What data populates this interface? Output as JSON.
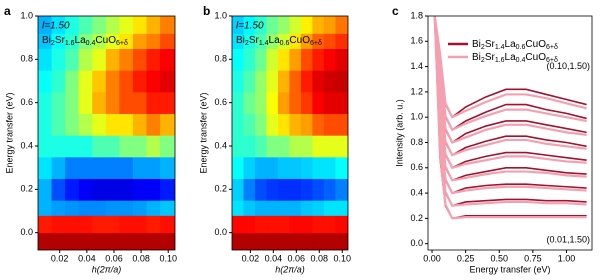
{
  "chart_data": [
    {
      "type": "heatmap",
      "panel_label": "a",
      "annotation": "l=1.50",
      "sample": "Bi2Sr1.6La0.4CuO6+δ",
      "xlabel": "h(2π/a)",
      "ylabel": "Energy transfer (eV)",
      "xlim": [
        0.004,
        0.105
      ],
      "ylim": [
        -0.08,
        1.0
      ],
      "xticks": [
        0.02,
        0.04,
        0.06,
        0.08,
        {
          "value": 0.1,
          "label": "0.10"
        }
      ],
      "yticks": [
        {
          "value": 0,
          "label": "0.0"
        },
        0.2,
        0.4,
        0.6,
        0.8,
        {
          "value": 1,
          "label": "1.0"
        }
      ],
      "xbins": [
        0.004,
        0.014,
        0.024,
        0.034,
        0.044,
        0.054,
        0.064,
        0.074,
        0.084,
        0.094,
        0.105
      ],
      "ybins": [
        -0.08,
        0,
        0.08,
        0.15,
        0.25,
        0.35,
        0.45,
        0.55,
        0.65,
        0.75,
        0.85,
        0.92,
        1.0
      ],
      "z": [
        [
          0.95,
          0.95,
          0.95,
          0.95,
          0.95,
          0.95,
          0.95,
          0.95,
          0.95,
          0.95
        ],
        [
          0.85,
          0.86,
          0.86,
          0.86,
          0.85,
          0.85,
          0.86,
          0.86,
          0.85,
          0.86
        ],
        [
          0.3,
          0.28,
          0.27,
          0.26,
          0.26,
          0.27,
          0.27,
          0.28,
          0.3,
          0.32
        ],
        [
          0.3,
          0.2,
          0.15,
          0.12,
          0.1,
          0.1,
          0.1,
          0.12,
          0.12,
          0.15
        ],
        [
          0.35,
          0.3,
          0.25,
          0.25,
          0.25,
          0.25,
          0.25,
          0.28,
          0.28,
          0.3
        ],
        [
          0.4,
          0.4,
          0.4,
          0.4,
          0.45,
          0.45,
          0.5,
          0.5,
          0.55,
          0.5
        ],
        [
          0.4,
          0.45,
          0.5,
          0.55,
          0.6,
          0.65,
          0.65,
          0.7,
          0.75,
          0.7
        ],
        [
          0.4,
          0.45,
          0.5,
          0.6,
          0.7,
          0.75,
          0.8,
          0.8,
          0.85,
          0.85
        ],
        [
          0.38,
          0.42,
          0.5,
          0.6,
          0.68,
          0.75,
          0.8,
          0.85,
          0.88,
          0.9
        ],
        [
          0.35,
          0.4,
          0.45,
          0.55,
          0.6,
          0.7,
          0.75,
          0.8,
          0.85,
          0.88
        ],
        [
          0.32,
          0.38,
          0.42,
          0.5,
          0.55,
          0.6,
          0.65,
          0.72,
          0.75,
          0.8
        ],
        [
          0.3,
          0.35,
          0.4,
          0.45,
          0.5,
          0.55,
          0.6,
          0.65,
          0.7,
          0.75
        ]
      ]
    },
    {
      "type": "heatmap",
      "panel_label": "b",
      "annotation": "l=1.50",
      "sample": "Bi2Sr1.4La0.6CuO6+δ",
      "xlabel": "h(2π/a)",
      "ylabel": "Energy transfer (eV)",
      "xlim": [
        0.004,
        0.105
      ],
      "ylim": [
        -0.08,
        1.0
      ],
      "xticks": [
        0.02,
        0.04,
        0.06,
        0.08,
        {
          "value": 0.1,
          "label": "0.10"
        }
      ],
      "yticks": [
        {
          "value": 0,
          "label": "0.0"
        },
        0.2,
        0.4,
        0.6,
        0.8,
        {
          "value": 1,
          "label": "1.0"
        }
      ],
      "xbins": [
        0.004,
        0.014,
        0.024,
        0.034,
        0.044,
        0.054,
        0.064,
        0.074,
        0.084,
        0.094,
        0.105
      ],
      "ybins": [
        -0.08,
        0,
        0.08,
        0.15,
        0.25,
        0.35,
        0.45,
        0.55,
        0.65,
        0.75,
        0.85,
        0.92,
        1.0
      ],
      "z": [
        [
          0.95,
          0.95,
          0.95,
          0.95,
          0.95,
          0.95,
          0.95,
          0.95,
          0.95,
          0.95
        ],
        [
          0.87,
          0.87,
          0.86,
          0.86,
          0.86,
          0.87,
          0.87,
          0.86,
          0.86,
          0.87
        ],
        [
          0.35,
          0.32,
          0.3,
          0.3,
          0.3,
          0.3,
          0.32,
          0.33,
          0.35,
          0.35
        ],
        [
          0.33,
          0.25,
          0.2,
          0.18,
          0.17,
          0.17,
          0.18,
          0.2,
          0.22,
          0.25
        ],
        [
          0.38,
          0.33,
          0.3,
          0.3,
          0.32,
          0.32,
          0.33,
          0.35,
          0.35,
          0.38
        ],
        [
          0.42,
          0.42,
          0.45,
          0.5,
          0.5,
          0.55,
          0.55,
          0.6,
          0.6,
          0.6
        ],
        [
          0.42,
          0.45,
          0.5,
          0.6,
          0.65,
          0.7,
          0.72,
          0.78,
          0.8,
          0.8
        ],
        [
          0.42,
          0.48,
          0.52,
          0.62,
          0.72,
          0.78,
          0.82,
          0.88,
          0.9,
          0.9
        ],
        [
          0.4,
          0.45,
          0.52,
          0.6,
          0.7,
          0.78,
          0.85,
          0.9,
          0.92,
          0.93
        ],
        [
          0.38,
          0.42,
          0.48,
          0.58,
          0.65,
          0.72,
          0.8,
          0.85,
          0.88,
          0.9
        ],
        [
          0.35,
          0.4,
          0.45,
          0.52,
          0.58,
          0.65,
          0.72,
          0.78,
          0.8,
          0.83
        ],
        [
          0.33,
          0.37,
          0.42,
          0.48,
          0.52,
          0.58,
          0.64,
          0.7,
          0.72,
          0.76
        ]
      ]
    },
    {
      "type": "line",
      "panel_label": "c",
      "xlabel": "Energy transfer (eV)",
      "ylabel": "Intensity (arb. u.)",
      "xlim": [
        -0.03,
        1.19
      ],
      "ylim": [
        -0.05,
        1.8
      ],
      "xticks": [
        {
          "value": 0,
          "label": "0.00"
        },
        0.25,
        {
          "value": 0.5,
          "label": "0.50"
        },
        0.75,
        {
          "value": 1,
          "label": "1.00"
        }
      ],
      "yticks": [
        {
          "value": 0,
          "label": "0.0"
        },
        0.2,
        0.4,
        0.6,
        0.8,
        {
          "value": 1,
          "label": "1.0"
        },
        1.2,
        1.4,
        1.6,
        1.8
      ],
      "annotations": [
        "(0.10,1.50)",
        "(0.01,1.50)"
      ],
      "x": [
        0.02,
        0.06,
        0.1,
        0.15,
        0.25,
        0.4,
        0.55,
        0.7,
        0.85,
        1.0,
        1.15
      ],
      "series": [
        {
          "name": "Bi2Sr1.4La0.6CuO6+δ",
          "color": "#a3112e",
          "curves": [
            [
              1.8,
              0.67,
              0.3,
              0.2,
              0.22,
              0.22,
              0.22,
              0.22,
              0.22,
              0.22,
              0.22
            ],
            [
              1.8,
              0.77,
              0.4,
              0.3,
              0.33,
              0.34,
              0.35,
              0.35,
              0.34,
              0.34,
              0.33
            ],
            [
              1.8,
              0.87,
              0.5,
              0.4,
              0.44,
              0.46,
              0.47,
              0.47,
              0.46,
              0.45,
              0.44
            ],
            [
              1.8,
              0.97,
              0.6,
              0.5,
              0.54,
              0.57,
              0.6,
              0.6,
              0.58,
              0.56,
              0.55
            ],
            [
              1.8,
              1.07,
              0.7,
              0.6,
              0.65,
              0.69,
              0.72,
              0.72,
              0.7,
              0.68,
              0.66
            ],
            [
              1.8,
              1.17,
              0.8,
              0.7,
              0.76,
              0.81,
              0.85,
              0.85,
              0.82,
              0.8,
              0.77
            ],
            [
              1.8,
              1.27,
              0.9,
              0.8,
              0.87,
              0.93,
              0.97,
              0.97,
              0.94,
              0.91,
              0.88
            ],
            [
              1.8,
              1.37,
              1.0,
              0.9,
              0.97,
              1.04,
              1.1,
              1.1,
              1.06,
              1.03,
              0.99
            ],
            [
              1.8,
              1.47,
              1.1,
              1.0,
              1.08,
              1.16,
              1.22,
              1.22,
              1.18,
              1.14,
              1.1
            ]
          ]
        },
        {
          "name": "Bi2Sr1.6La0.4CuO6+δ",
          "color": "#f4a0b0",
          "curves": [
            [
              1.8,
              0.7,
              0.31,
              0.2,
              0.21,
              0.21,
              0.21,
              0.21,
              0.21,
              0.21,
              0.21
            ],
            [
              1.8,
              0.8,
              0.41,
              0.3,
              0.31,
              0.32,
              0.33,
              0.33,
              0.32,
              0.32,
              0.31
            ],
            [
              1.8,
              0.9,
              0.51,
              0.4,
              0.42,
              0.44,
              0.45,
              0.45,
              0.44,
              0.43,
              0.42
            ],
            [
              1.8,
              1.0,
              0.61,
              0.5,
              0.52,
              0.55,
              0.57,
              0.57,
              0.56,
              0.54,
              0.53
            ],
            [
              1.8,
              1.1,
              0.71,
              0.6,
              0.63,
              0.66,
              0.69,
              0.69,
              0.67,
              0.65,
              0.64
            ],
            [
              1.8,
              1.2,
              0.81,
              0.7,
              0.74,
              0.78,
              0.82,
              0.82,
              0.79,
              0.77,
              0.75
            ],
            [
              1.8,
              1.3,
              0.91,
              0.8,
              0.84,
              0.9,
              0.94,
              0.94,
              0.91,
              0.88,
              0.86
            ],
            [
              1.8,
              1.4,
              1.01,
              0.9,
              0.95,
              1.01,
              1.06,
              1.06,
              1.03,
              1.0,
              0.97
            ],
            [
              1.8,
              1.5,
              1.11,
              1.0,
              1.05,
              1.12,
              1.18,
              1.18,
              1.15,
              1.11,
              1.07
            ]
          ]
        }
      ]
    }
  ]
}
